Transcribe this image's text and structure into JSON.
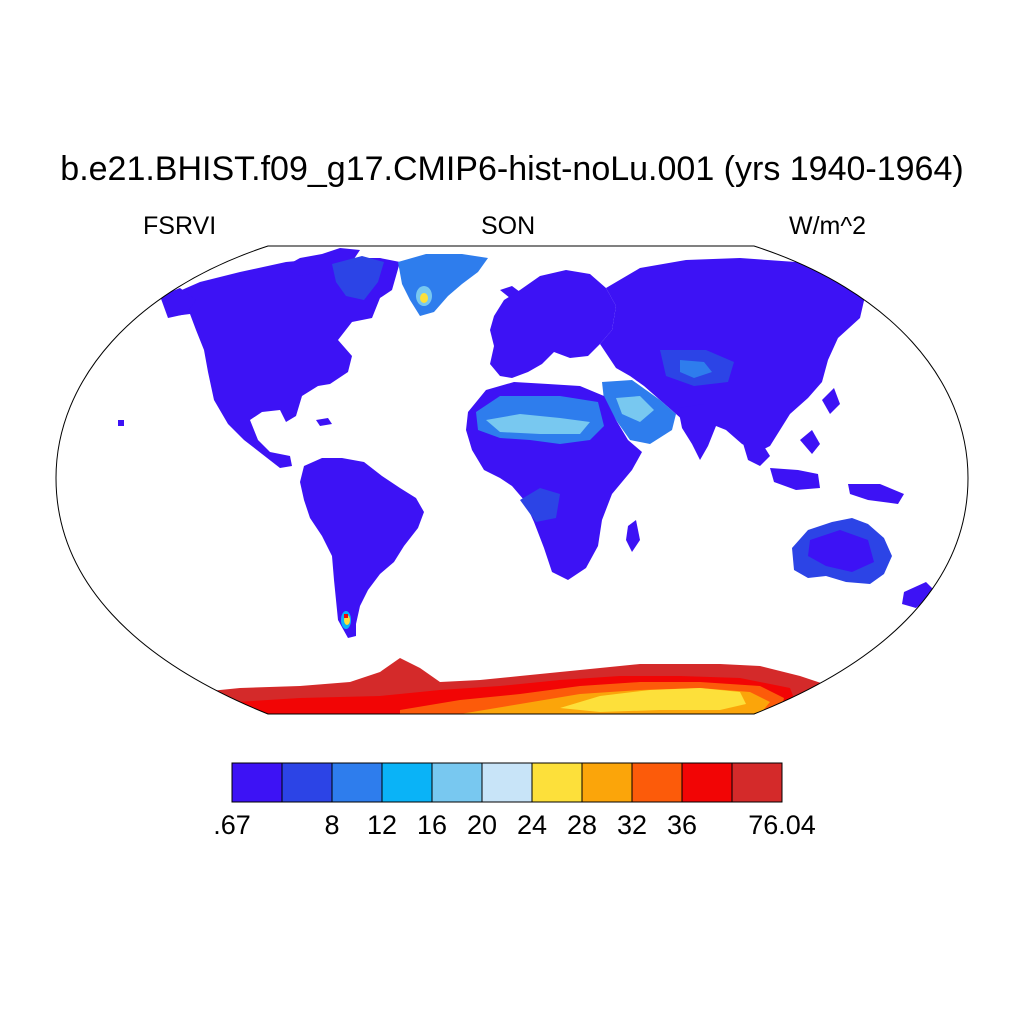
{
  "header": {
    "title": "b.e21.BHIST.f09_g17.CMIP6-hist-noLu.001 (yrs 1940-1964)",
    "left_label": "FSRVI",
    "center_label": "SON",
    "right_label": "W/m^2"
  },
  "colorbar": {
    "colors": [
      "#3d12f5",
      "#2c44e6",
      "#2e7ded",
      "#0ab3f7",
      "#78c8f0",
      "#c8e4f8",
      "#fde03a",
      "#fba50a",
      "#fc5b0a",
      "#f20505",
      "#d42a2a"
    ],
    "tick_labels": [
      ".67",
      "8",
      "12",
      "16",
      "20",
      "24",
      "28",
      "32",
      "36",
      "76.04"
    ]
  },
  "map": {
    "projection": "Robinson",
    "land_colors": {
      "base": "#3d12f5",
      "secondary": "#2c44e6",
      "desert_mid": "#2e7ded",
      "desert_light": "#78c8f0",
      "greenland_core": "#fde03a",
      "antarctic_rim": "#d42a2a",
      "antarctic_mid": "#f20505",
      "antarctic_inner": "#fc5b0a",
      "antarctic_core": "#fba50a",
      "antarctic_peak": "#fde03a"
    }
  }
}
